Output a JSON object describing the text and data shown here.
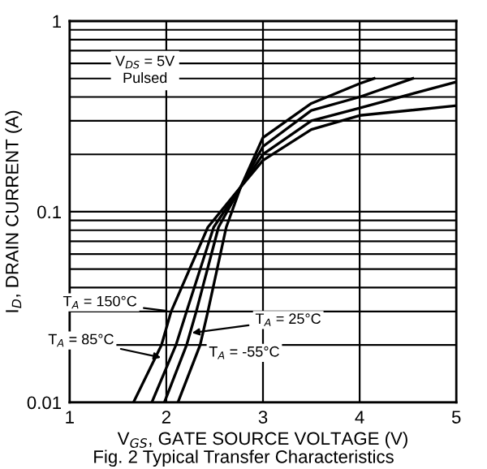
{
  "chart_data": {
    "type": "line",
    "title": "Fig. 2 Typical Transfer Characteristics",
    "xlabel": "V$_{GS}$, GATE SOURCE VOLTAGE (V)",
    "ylabel": "I$_{D}$, DRAIN CURRENT (A)",
    "log": "y",
    "grid": true,
    "marker": "none",
    "line_style": "solid",
    "xlim": [
      1,
      5
    ],
    "xticks": [
      1,
      2,
      3,
      4,
      5
    ],
    "ylim": [
      0.01,
      1
    ],
    "yticks": [
      0.01,
      {
        "value": 0.02,
        "label": null
      },
      {
        "value": 0.03,
        "label": null
      },
      {
        "value": 0.04,
        "label": null
      },
      {
        "value": 0.05,
        "label": null
      },
      {
        "value": 0.06,
        "label": null
      },
      {
        "value": 0.07,
        "label": null
      },
      {
        "value": 0.08,
        "label": null
      },
      {
        "value": 0.09,
        "label": null
      },
      0.1,
      {
        "value": 0.2,
        "label": null
      },
      {
        "value": 0.3,
        "label": null
      },
      {
        "value": 0.4,
        "label": null
      },
      {
        "value": 0.5,
        "label": null
      },
      {
        "value": 0.6,
        "label": null
      },
      {
        "value": 0.7,
        "label": null
      },
      {
        "value": 0.8,
        "label": null
      },
      {
        "value": 0.9,
        "label": null
      },
      1
    ],
    "series": [
      {
        "color": "#000000",
        "x": [
          1.66,
          1.95,
          2.05,
          2.43,
          2.77,
          3.0,
          3.5,
          4.0,
          5.0
        ],
        "values": [
          0.01,
          0.02,
          0.03,
          0.083,
          0.135,
          0.186,
          0.27,
          0.32,
          0.36
        ]
      },
      {
        "color": "#000000",
        "x": [
          1.85,
          2.1,
          2.21,
          2.49,
          2.77,
          3.0,
          3.5,
          4.0,
          5.0
        ],
        "values": [
          0.01,
          0.02,
          0.03,
          0.083,
          0.135,
          0.2,
          0.3,
          0.35,
          0.48
        ]
      },
      {
        "color": "#000000",
        "x": [
          1.98,
          2.21,
          2.31,
          2.54,
          2.77,
          3.0,
          3.5,
          4.0,
          4.55
        ],
        "values": [
          0.01,
          0.02,
          0.03,
          0.083,
          0.135,
          0.22,
          0.34,
          0.4,
          0.5
        ]
      },
      {
        "color": "#000000",
        "x": [
          2.12,
          2.35,
          2.43,
          2.62,
          2.77,
          3.0,
          3.5,
          4.0,
          4.15
        ],
        "values": [
          0.01,
          0.02,
          0.03,
          0.083,
          0.135,
          0.245,
          0.37,
          0.47,
          0.5
        ]
      }
    ],
    "annotations": [
      "V$_{DS}$ = 5V\nPulsed",
      {
        "text": "T$_{A}$ = 150°C",
        "x": 2.05,
        "y": 0.03
      },
      {
        "text": "T$_{A}$ = 85°C",
        "x": 1.99,
        "y": 0.017
      },
      {
        "text": "T$_{A}$ = 25°C",
        "x": 2.22,
        "y": 0.023
      },
      "T$_{A}$ = -55°C"
    ]
  }
}
